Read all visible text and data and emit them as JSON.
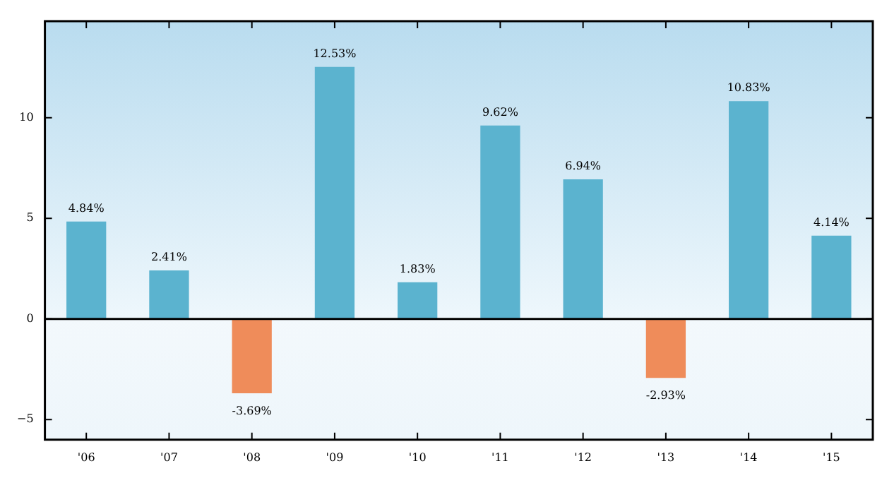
{
  "chart_data": {
    "type": "bar",
    "categories": [
      "'06",
      "'07",
      "'08",
      "'09",
      "'10",
      "'11",
      "'12",
      "'13",
      "'14",
      "'15"
    ],
    "values": [
      4.84,
      2.41,
      -3.69,
      12.53,
      1.83,
      9.62,
      6.94,
      -2.93,
      10.83,
      4.14
    ],
    "colors": [
      "#5bb3cf",
      "#5bb3cf",
      "#ef8c5a",
      "#5bb3cf",
      "#5bb3cf",
      "#5bb3cf",
      "#5bb3cf",
      "#ef8c5a",
      "#5bb3cf",
      "#5bb3cf"
    ],
    "value_labels": [
      "4.84%",
      "2.41%",
      "-3.69%",
      "12.53%",
      "1.83%",
      "9.62%",
      "6.94%",
      "-2.93%",
      "10.83%",
      "4.14%"
    ],
    "ylim": [
      -6,
      14.8
    ],
    "yticks": [
      {
        "value": -5,
        "label": "−5"
      },
      0,
      5,
      10
    ],
    "bands": [
      {
        "axis": "y",
        "from": 0,
        "to": 14.8,
        "color": "#b9dcef"
      }
    ],
    "ref_lines": [
      {
        "axis": "y",
        "value": 0,
        "color": "#000000"
      }
    ],
    "grid": false,
    "legend": false
  }
}
